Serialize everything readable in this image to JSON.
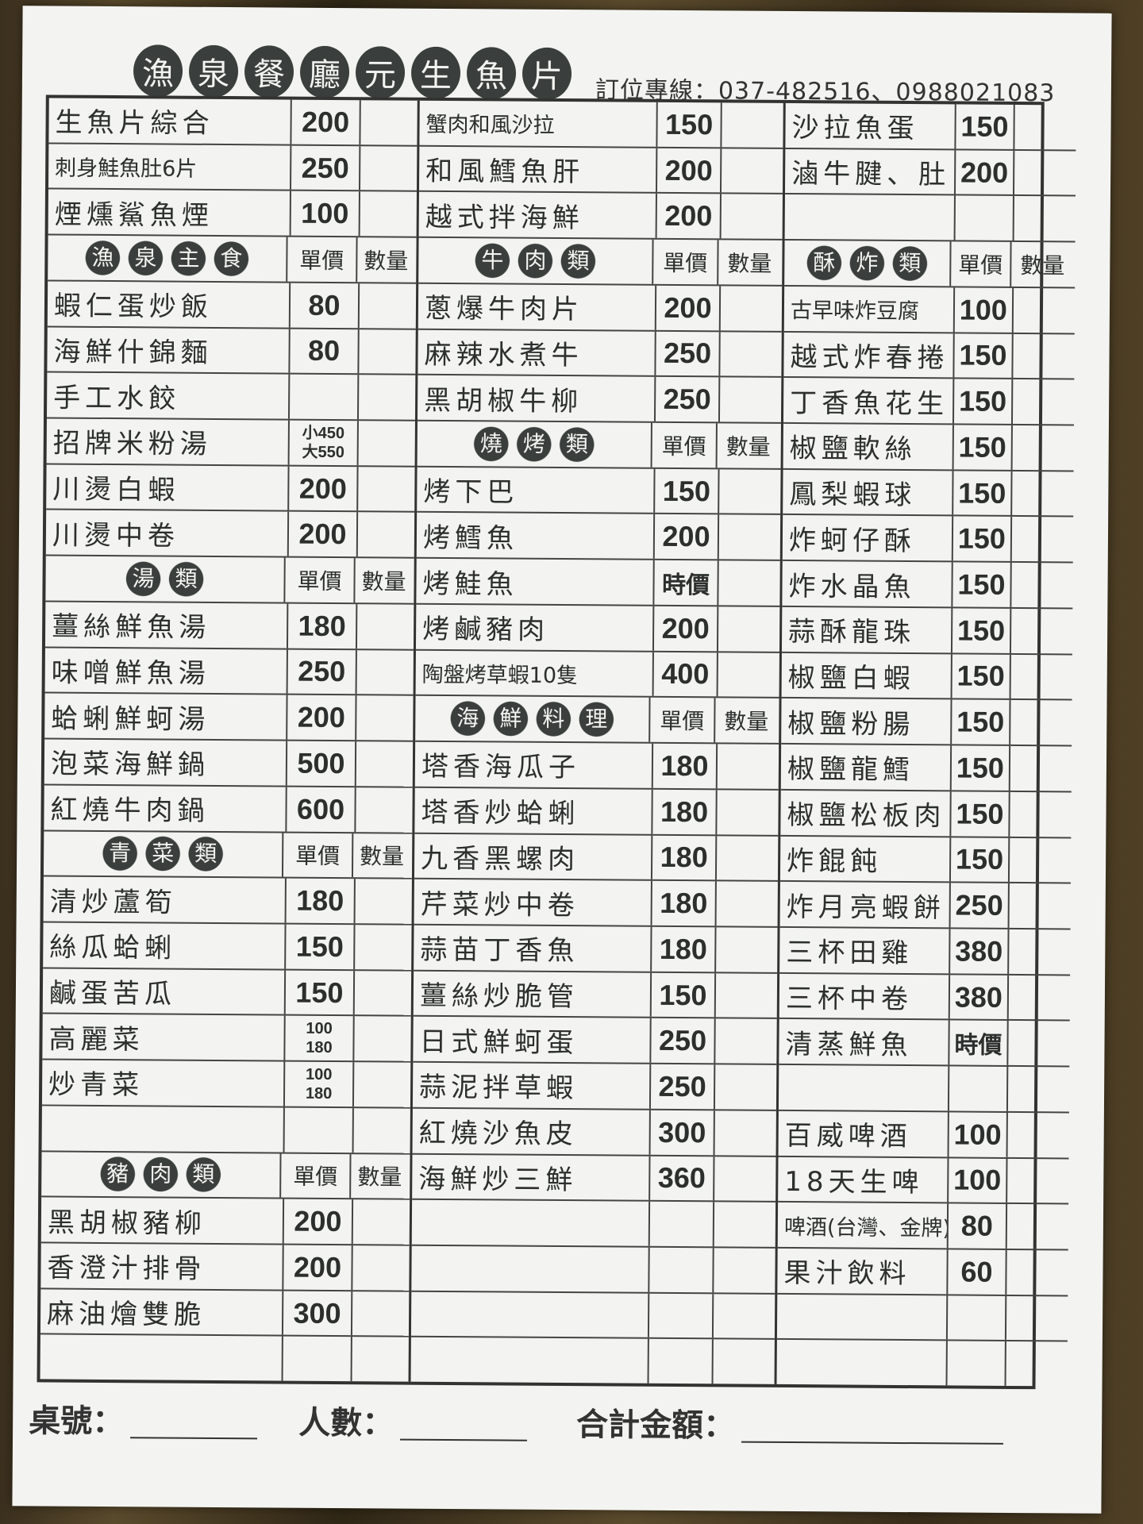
{
  "header": {
    "title_chars": [
      "漁",
      "泉",
      "餐",
      "廳",
      "元",
      "生",
      "魚",
      "片"
    ],
    "phone": "訂位專線：037-482516、0988021083"
  },
  "col_headers": {
    "price": "單價",
    "qty": "數量"
  },
  "columns": [
    [
      {
        "name": "生魚片綜合",
        "price": "200"
      },
      {
        "name": "刺身鮭魚肚6片",
        "price": "250"
      },
      {
        "name": "煙燻鯊魚煙",
        "price": "100"
      },
      {
        "section": "漁泉主食"
      },
      {
        "name": "蝦仁蛋炒飯",
        "price": "80"
      },
      {
        "name": "海鮮什錦麵",
        "price": "80"
      },
      {
        "name": "手工水餃",
        "price": ""
      },
      {
        "name": "招牌米粉湯",
        "price": [
          "小450",
          "大550"
        ]
      },
      {
        "name": "川燙白蝦",
        "price": "200"
      },
      {
        "name": "川燙中卷",
        "price": "200"
      },
      {
        "section": "湯類"
      },
      {
        "name": "薑絲鮮魚湯",
        "price": "180"
      },
      {
        "name": "味噌鮮魚湯",
        "price": "250"
      },
      {
        "name": "蛤蜊鮮蚵湯",
        "price": "200"
      },
      {
        "name": "泡菜海鮮鍋",
        "price": "500"
      },
      {
        "name": "紅燒牛肉鍋",
        "price": "600"
      },
      {
        "section": "青菜類"
      },
      {
        "name": "清炒蘆筍",
        "price": "180"
      },
      {
        "name": "絲瓜蛤蜊",
        "price": "150"
      },
      {
        "name": "鹹蛋苦瓜",
        "price": "150"
      },
      {
        "name": "高麗菜",
        "price": [
          "100",
          "180"
        ]
      },
      {
        "name": "炒青菜",
        "price": [
          "100",
          "180"
        ]
      },
      {
        "name": "",
        "price": ""
      },
      {
        "section": "豬肉類"
      },
      {
        "name": "黑胡椒豬柳",
        "price": "200"
      },
      {
        "name": "香澄汁排骨",
        "price": "200"
      },
      {
        "name": "麻油燴雙脆",
        "price": "300"
      },
      {
        "name": "",
        "price": ""
      }
    ],
    [
      {
        "name": "蟹肉和風沙拉",
        "price": "150"
      },
      {
        "name": "和風鱈魚肝",
        "price": "200"
      },
      {
        "name": "越式拌海鮮",
        "price": "200"
      },
      {
        "section": "牛肉類"
      },
      {
        "name": "蔥爆牛肉片",
        "price": "200"
      },
      {
        "name": "麻辣水煮牛",
        "price": "250"
      },
      {
        "name": "黑胡椒牛柳",
        "price": "250"
      },
      {
        "section": "燒烤類"
      },
      {
        "name": "烤下巴",
        "price": "150"
      },
      {
        "name": "烤鱈魚",
        "price": "200"
      },
      {
        "name": "烤鮭魚",
        "price": "時價"
      },
      {
        "name": "烤鹹豬肉",
        "price": "200"
      },
      {
        "name": "陶盤烤草蝦10隻",
        "price": "400"
      },
      {
        "section": "海鮮料理"
      },
      {
        "name": "塔香海瓜子",
        "price": "180"
      },
      {
        "name": "塔香炒蛤蜊",
        "price": "180"
      },
      {
        "name": "九香黑螺肉",
        "price": "180"
      },
      {
        "name": "芹菜炒中卷",
        "price": "180"
      },
      {
        "name": "蒜苗丁香魚",
        "price": "180"
      },
      {
        "name": "薑絲炒脆管",
        "price": "150"
      },
      {
        "name": "日式鮮蚵蛋",
        "price": "250"
      },
      {
        "name": "蒜泥拌草蝦",
        "price": "250"
      },
      {
        "name": "紅燒沙魚皮",
        "price": "300"
      },
      {
        "name": "海鮮炒三鮮",
        "price": "360"
      },
      {
        "name": "",
        "price": ""
      },
      {
        "name": "",
        "price": ""
      },
      {
        "name": "",
        "price": ""
      },
      {
        "name": "",
        "price": ""
      }
    ],
    [
      {
        "name": "沙拉魚蛋",
        "price": "150"
      },
      {
        "name": "滷牛腱、肚",
        "price": "200"
      },
      {
        "name": "",
        "price": ""
      },
      {
        "section": "酥炸類"
      },
      {
        "name": "古早味炸豆腐",
        "price": "100"
      },
      {
        "name": "越式炸春捲",
        "price": "150"
      },
      {
        "name": "丁香魚花生",
        "price": "150"
      },
      {
        "name": "椒鹽軟絲",
        "price": "150"
      },
      {
        "name": "鳳梨蝦球",
        "price": "150"
      },
      {
        "name": "炸蚵仔酥",
        "price": "150"
      },
      {
        "name": "炸水晶魚",
        "price": "150"
      },
      {
        "name": "蒜酥龍珠",
        "price": "150"
      },
      {
        "name": "椒鹽白蝦",
        "price": "150"
      },
      {
        "name": "椒鹽粉腸",
        "price": "150"
      },
      {
        "name": "椒鹽龍鱈",
        "price": "150"
      },
      {
        "name": "椒鹽松板肉",
        "price": "150"
      },
      {
        "name": "炸餛飩",
        "price": "150"
      },
      {
        "name": "炸月亮蝦餅",
        "price": "250"
      },
      {
        "name": "三杯田雞",
        "price": "380"
      },
      {
        "name": "三杯中卷",
        "price": "380"
      },
      {
        "name": "清蒸鮮魚",
        "price": "時價"
      },
      {
        "name": "",
        "price": ""
      },
      {
        "name": "百威啤酒",
        "price": "100"
      },
      {
        "name": "18天生啤",
        "price": "100"
      },
      {
        "name": "啤酒(台灣、金牌)",
        "price": "80"
      },
      {
        "name": "果汁飲料",
        "price": "60"
      },
      {
        "name": "",
        "price": ""
      },
      {
        "name": "",
        "price": ""
      }
    ]
  ],
  "footer": {
    "table_no": "桌號：",
    "people": "人數：",
    "total": "合計金額："
  }
}
